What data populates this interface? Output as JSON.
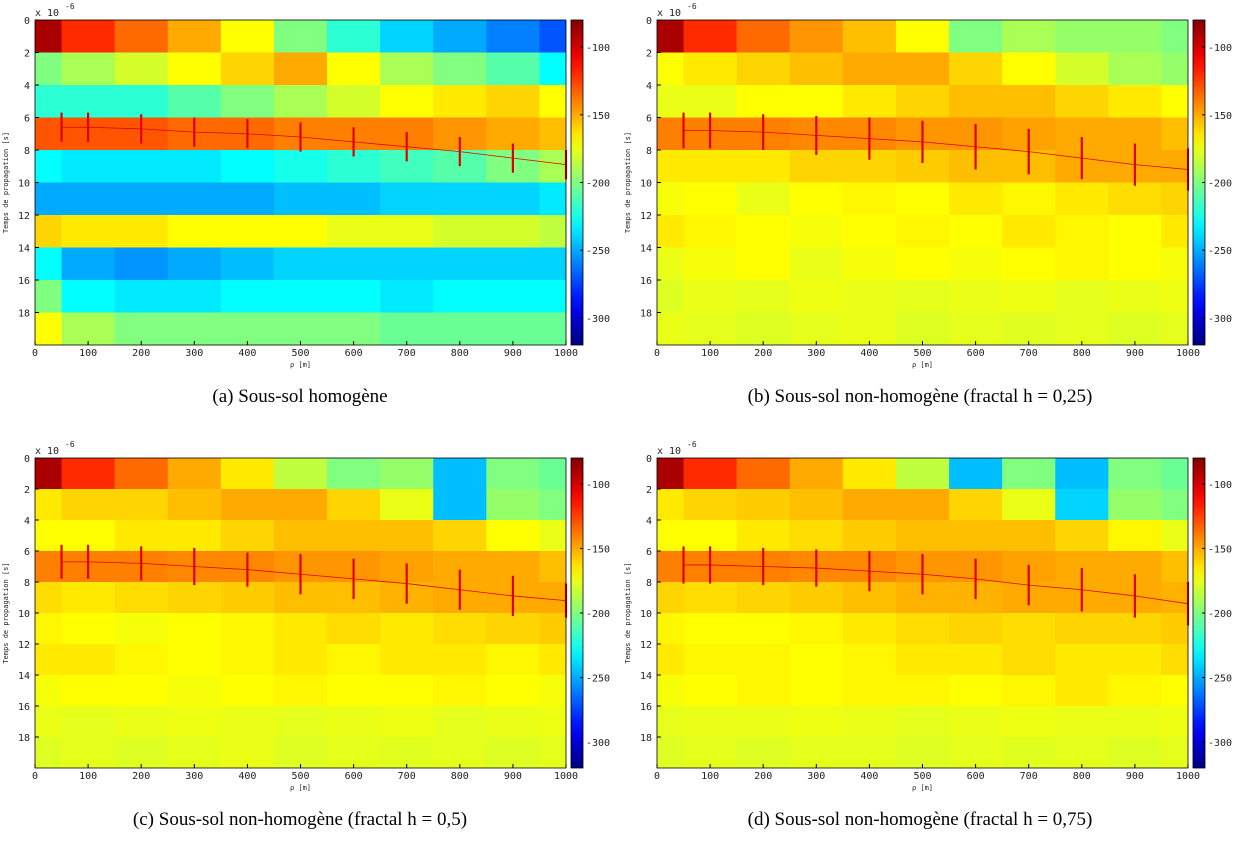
{
  "chart_data": [
    {
      "type": "heatmap",
      "caption": "(a) Sous-sol homogène",
      "xlabel": "ρ [m]",
      "ylabel": "Temps de propagation [s]",
      "y_multiplier": "x 10",
      "y_multiplier_exp": "-6",
      "colormap": "jet",
      "xlim": [
        0,
        1000
      ],
      "xticks": [
        0,
        100,
        200,
        300,
        400,
        500,
        600,
        700,
        800,
        900,
        1000
      ],
      "ylim": [
        0,
        20
      ],
      "yreverse": true,
      "yticks": [
        0,
        2,
        4,
        6,
        8,
        10,
        12,
        14,
        16,
        18
      ],
      "clim": [
        -320,
        -80
      ],
      "cticks": [
        -100,
        -150,
        -200,
        -250,
        -300
      ],
      "x": [
        0,
        100,
        200,
        300,
        400,
        500,
        600,
        700,
        800,
        900,
        1000
      ],
      "y": [
        1,
        3,
        5,
        7,
        9,
        11,
        13,
        15,
        17,
        19
      ],
      "z": [
        [
          -90,
          -120,
          -135,
          -150,
          -170,
          -200,
          -220,
          -240,
          -250,
          -260,
          -270
        ],
        [
          -200,
          -190,
          -180,
          -170,
          -160,
          -150,
          -170,
          -190,
          -200,
          -210,
          -230
        ],
        [
          -220,
          -220,
          -220,
          -210,
          -200,
          -190,
          -180,
          -170,
          -165,
          -160,
          -170
        ],
        [
          -130,
          -130,
          -130,
          -135,
          -135,
          -140,
          -140,
          -140,
          -145,
          -150,
          -155
        ],
        [
          -230,
          -235,
          -235,
          -235,
          -230,
          -225,
          -220,
          -215,
          -210,
          -200,
          -190
        ],
        [
          -250,
          -250,
          -250,
          -250,
          -250,
          -245,
          -245,
          -240,
          -240,
          -240,
          -235
        ],
        [
          -160,
          -165,
          -165,
          -170,
          -170,
          -170,
          -175,
          -175,
          -180,
          -180,
          -185
        ],
        [
          -230,
          -250,
          -255,
          -250,
          -245,
          -240,
          -240,
          -240,
          -240,
          -240,
          -240
        ],
        [
          -200,
          -230,
          -235,
          -235,
          -230,
          -230,
          -230,
          -235,
          -230,
          -230,
          -230
        ],
        [
          -170,
          -190,
          -200,
          -200,
          -200,
          -200,
          -200,
          -205,
          -205,
          -205,
          -205
        ]
      ],
      "marker_color": "#e00000",
      "markers": {
        "x": [
          50,
          100,
          200,
          300,
          400,
          500,
          600,
          700,
          800,
          900,
          1000
        ],
        "y": [
          6.6,
          6.6,
          6.7,
          6.9,
          7.0,
          7.2,
          7.5,
          7.8,
          8.1,
          8.5,
          8.9
        ],
        "err": [
          0.9,
          0.9,
          0.9,
          0.9,
          0.9,
          0.9,
          0.9,
          0.9,
          0.9,
          0.9,
          0.9
        ]
      }
    },
    {
      "type": "heatmap",
      "caption": "(b) Sous-sol non-homogène (fractal h = 0,25)",
      "xlabel": "ρ [m]",
      "ylabel": "Temps de propagation [s]",
      "y_multiplier": "x 10",
      "y_multiplier_exp": "-6",
      "colormap": "jet",
      "xlim": [
        0,
        1000
      ],
      "xticks": [
        0,
        100,
        200,
        300,
        400,
        500,
        600,
        700,
        800,
        900,
        1000
      ],
      "ylim": [
        0,
        20
      ],
      "yreverse": true,
      "yticks": [
        0,
        2,
        4,
        6,
        8,
        10,
        12,
        14,
        16,
        18
      ],
      "clim": [
        -320,
        -80
      ],
      "cticks": [
        -100,
        -150,
        -200,
        -250,
        -300
      ],
      "x": [
        0,
        100,
        200,
        300,
        400,
        500,
        600,
        700,
        800,
        900,
        1000
      ],
      "y": [
        1,
        3,
        5,
        7,
        9,
        11,
        13,
        15,
        17,
        19
      ],
      "z": [
        [
          -90,
          -120,
          -135,
          -145,
          -155,
          -170,
          -200,
          -190,
          -195,
          -195,
          -200
        ],
        [
          -170,
          -165,
          -160,
          -155,
          -150,
          -150,
          -160,
          -170,
          -180,
          -190,
          -195
        ],
        [
          -175,
          -175,
          -170,
          -170,
          -165,
          -160,
          -155,
          -155,
          -160,
          -165,
          -170
        ],
        [
          -140,
          -140,
          -140,
          -142,
          -142,
          -145,
          -145,
          -148,
          -150,
          -150,
          -155
        ],
        [
          -165,
          -165,
          -165,
          -160,
          -160,
          -158,
          -155,
          -155,
          -150,
          -150,
          -150
        ],
        [
          -172,
          -170,
          -175,
          -170,
          -168,
          -170,
          -165,
          -168,
          -165,
          -162,
          -160
        ],
        [
          -165,
          -168,
          -170,
          -172,
          -170,
          -168,
          -170,
          -165,
          -168,
          -170,
          -165
        ],
        [
          -175,
          -172,
          -170,
          -175,
          -172,
          -170,
          -172,
          -170,
          -168,
          -170,
          -172
        ],
        [
          -178,
          -175,
          -176,
          -174,
          -175,
          -176,
          -175,
          -174,
          -176,
          -175,
          -174
        ],
        [
          -175,
          -176,
          -178,
          -176,
          -175,
          -178,
          -176,
          -177,
          -176,
          -178,
          -176
        ]
      ],
      "marker_color": "#e00000",
      "markers": {
        "x": [
          50,
          100,
          200,
          300,
          400,
          500,
          600,
          700,
          800,
          900,
          1000
        ],
        "y": [
          6.8,
          6.8,
          6.9,
          7.1,
          7.3,
          7.5,
          7.8,
          8.1,
          8.5,
          8.9,
          9.2
        ],
        "err": [
          1.1,
          1.1,
          1.1,
          1.2,
          1.3,
          1.3,
          1.4,
          1.4,
          1.3,
          1.3,
          1.3
        ]
      }
    },
    {
      "type": "heatmap",
      "caption": "(c) Sous-sol non-homogène (fractal h = 0,5)",
      "xlabel": "ρ [m]",
      "ylabel": "Temps de propagation [s]",
      "y_multiplier": "x 10",
      "y_multiplier_exp": "-6",
      "colormap": "jet",
      "xlim": [
        0,
        1000
      ],
      "xticks": [
        0,
        100,
        200,
        300,
        400,
        500,
        600,
        700,
        800,
        900,
        1000
      ],
      "ylim": [
        0,
        20
      ],
      "yreverse": true,
      "yticks": [
        0,
        2,
        4,
        6,
        8,
        10,
        12,
        14,
        16,
        18
      ],
      "clim": [
        -320,
        -80
      ],
      "cticks": [
        -100,
        -150,
        -200,
        -250,
        -300
      ],
      "x": [
        0,
        100,
        200,
        300,
        400,
        500,
        600,
        700,
        800,
        900,
        1000
      ],
      "y": [
        1,
        3,
        5,
        7,
        9,
        11,
        13,
        15,
        17,
        19
      ],
      "z": [
        [
          -90,
          -120,
          -135,
          -150,
          -165,
          -185,
          -200,
          -195,
          -245,
          -200,
          -205
        ],
        [
          -165,
          -160,
          -160,
          -155,
          -150,
          -150,
          -160,
          -175,
          -245,
          -195,
          -200
        ],
        [
          -170,
          -170,
          -165,
          -165,
          -160,
          -155,
          -155,
          -155,
          -160,
          -170,
          -175
        ],
        [
          -140,
          -140,
          -140,
          -142,
          -142,
          -145,
          -145,
          -148,
          -150,
          -150,
          -155
        ],
        [
          -162,
          -165,
          -162,
          -160,
          -158,
          -155,
          -155,
          -152,
          -150,
          -150,
          -150
        ],
        [
          -168,
          -170,
          -172,
          -170,
          -168,
          -165,
          -162,
          -165,
          -162,
          -160,
          -158
        ],
        [
          -165,
          -165,
          -168,
          -170,
          -168,
          -165,
          -168,
          -165,
          -165,
          -168,
          -165
        ],
        [
          -172,
          -170,
          -170,
          -172,
          -170,
          -168,
          -170,
          -170,
          -168,
          -170,
          -172
        ],
        [
          -175,
          -176,
          -175,
          -174,
          -175,
          -176,
          -175,
          -174,
          -176,
          -175,
          -174
        ],
        [
          -178,
          -176,
          -178,
          -176,
          -175,
          -178,
          -176,
          -177,
          -176,
          -178,
          -176
        ]
      ],
      "marker_color": "#e00000",
      "markers": {
        "x": [
          50,
          100,
          200,
          300,
          400,
          500,
          600,
          700,
          800,
          900,
          1000
        ],
        "y": [
          6.7,
          6.7,
          6.8,
          7.0,
          7.2,
          7.5,
          7.8,
          8.1,
          8.5,
          8.9,
          9.2
        ],
        "err": [
          1.1,
          1.1,
          1.1,
          1.2,
          1.1,
          1.3,
          1.3,
          1.3,
          1.3,
          1.3,
          1.1
        ]
      }
    },
    {
      "type": "heatmap",
      "caption": "(d) Sous-sol non-homogène (fractal h = 0,75)",
      "xlabel": "ρ [m]",
      "ylabel": "Temps de propagation [s]",
      "y_multiplier": "x 10",
      "y_multiplier_exp": "-6",
      "colormap": "jet",
      "xlim": [
        0,
        1000
      ],
      "xticks": [
        0,
        100,
        200,
        300,
        400,
        500,
        600,
        700,
        800,
        900,
        1000
      ],
      "ylim": [
        0,
        20
      ],
      "yreverse": true,
      "yticks": [
        0,
        2,
        4,
        6,
        8,
        10,
        12,
        14,
        16,
        18
      ],
      "clim": [
        -320,
        -80
      ],
      "cticks": [
        -100,
        -150,
        -200,
        -250,
        -300
      ],
      "x": [
        0,
        100,
        200,
        300,
        400,
        500,
        600,
        700,
        800,
        900,
        1000
      ],
      "y": [
        1,
        3,
        5,
        7,
        9,
        11,
        13,
        15,
        17,
        19
      ],
      "z": [
        [
          -90,
          -120,
          -135,
          -150,
          -165,
          -185,
          -245,
          -200,
          -245,
          -200,
          -205
        ],
        [
          -165,
          -160,
          -158,
          -155,
          -150,
          -150,
          -160,
          -175,
          -240,
          -195,
          -200
        ],
        [
          -170,
          -170,
          -165,
          -162,
          -158,
          -155,
          -155,
          -155,
          -160,
          -168,
          -175
        ],
        [
          -140,
          -140,
          -140,
          -142,
          -142,
          -145,
          -145,
          -148,
          -150,
          -150,
          -155
        ],
        [
          -160,
          -162,
          -160,
          -158,
          -155,
          -152,
          -152,
          -150,
          -150,
          -150,
          -152
        ],
        [
          -168,
          -170,
          -170,
          -168,
          -165,
          -162,
          -160,
          -162,
          -160,
          -160,
          -158
        ],
        [
          -165,
          -168,
          -168,
          -170,
          -168,
          -165,
          -165,
          -162,
          -165,
          -165,
          -162
        ],
        [
          -172,
          -170,
          -168,
          -170,
          -168,
          -168,
          -170,
          -168,
          -165,
          -168,
          -170
        ],
        [
          -176,
          -175,
          -175,
          -174,
          -175,
          -176,
          -175,
          -174,
          -175,
          -175,
          -174
        ],
        [
          -178,
          -176,
          -178,
          -176,
          -176,
          -178,
          -176,
          -177,
          -176,
          -178,
          -176
        ]
      ],
      "marker_color": "#e00000",
      "markers": {
        "x": [
          50,
          100,
          200,
          300,
          400,
          500,
          600,
          700,
          800,
          900,
          1000
        ],
        "y": [
          6.9,
          6.9,
          7.0,
          7.1,
          7.3,
          7.5,
          7.8,
          8.2,
          8.5,
          8.9,
          9.4
        ],
        "err": [
          1.2,
          1.2,
          1.2,
          1.2,
          1.3,
          1.3,
          1.3,
          1.3,
          1.4,
          1.4,
          1.4
        ]
      }
    }
  ]
}
